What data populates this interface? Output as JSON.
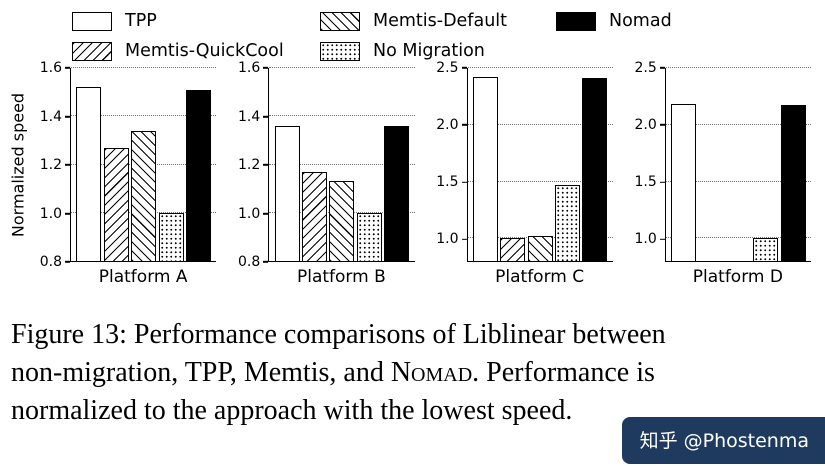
{
  "legend": {
    "items": [
      {
        "label": "TPP",
        "pattern": "tpp"
      },
      {
        "label": "Memtis-QuickCool",
        "pattern": "quickcool"
      },
      {
        "label": "Memtis-Default",
        "pattern": "default"
      },
      {
        "label": "No Migration",
        "pattern": "nomigration"
      },
      {
        "label": "Nomad",
        "pattern": "nomad"
      }
    ]
  },
  "chart_data": {
    "type": "bar",
    "ylabel": "Normalized speed",
    "grid": "dotted horizontal gridlines at y-ticks",
    "legend_position": "top, outside plots",
    "series_names": [
      "TPP",
      "Memtis-QuickCool",
      "Memtis-Default",
      "No Migration",
      "Nomad"
    ],
    "series_styles": [
      "white",
      "hatch ///",
      "hatch \\\\\\",
      "dots",
      "solid black"
    ],
    "panels": [
      {
        "label": "Platform A",
        "ylim": [
          0.8,
          1.6
        ],
        "yticks": [
          0.8,
          1.0,
          1.2,
          1.4,
          1.6
        ],
        "values": [
          1.52,
          1.27,
          1.34,
          1.0,
          1.51
        ]
      },
      {
        "label": "Platform B",
        "ylim": [
          0.8,
          1.6
        ],
        "yticks": [
          0.8,
          1.0,
          1.2,
          1.4,
          1.6
        ],
        "values": [
          1.36,
          1.17,
          1.13,
          1.0,
          1.36
        ]
      },
      {
        "label": "Platform C",
        "ylim": [
          0.8,
          2.5
        ],
        "yticks": [
          1.0,
          1.5,
          2.0,
          2.5
        ],
        "values": [
          2.42,
          1.0,
          1.02,
          1.47,
          2.41
        ]
      },
      {
        "label": "Platform D",
        "ylim": [
          0.8,
          2.5
        ],
        "yticks": [
          1.0,
          1.5,
          2.0,
          2.5
        ],
        "values": [
          2.18,
          null,
          null,
          1.0,
          2.17
        ]
      }
    ]
  },
  "caption": {
    "line1": "Figure 13: Performance comparisons of Liblinear between",
    "line2_pre": "non-migration, TPP, Memtis, and ",
    "line2_nomad": "Nomad",
    "line2_post": ". Performance is",
    "line3": "normalized to the approach with the lowest speed."
  },
  "watermark": {
    "text": "知乎 @Phostenma"
  }
}
